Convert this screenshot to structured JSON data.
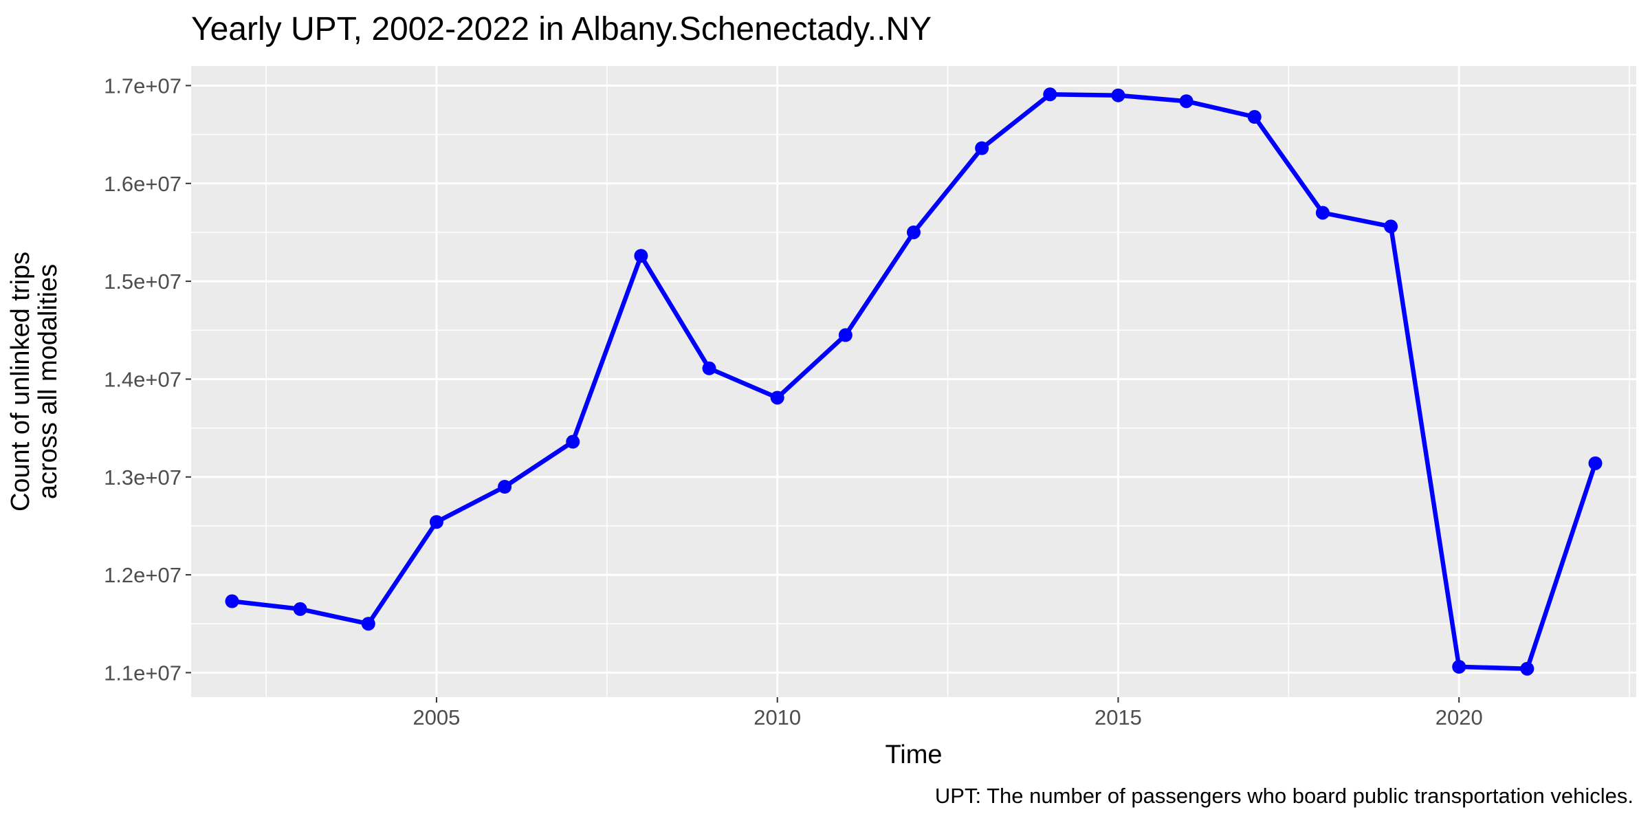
{
  "chart_data": {
    "type": "line",
    "title": "Yearly UPT, 2002-2022 in Albany.Schenectady..NY",
    "xlabel": "Time",
    "ylabel_lines": [
      "Count of unlinked trips",
      "across all modalities"
    ],
    "caption": "UPT: The number of passengers who board public transportation vehicles.",
    "xlim": [
      2001.4,
      2022.6
    ],
    "ylim": [
      10750000,
      17200000
    ],
    "x_ticks": [
      2005,
      2010,
      2015,
      2020
    ],
    "x_tick_labels": [
      "2005",
      "2010",
      "2015",
      "2020"
    ],
    "x_minor_ticks": [
      2002.5,
      2007.5,
      2012.5,
      2017.5,
      2022.5
    ],
    "y_ticks": [
      11000000,
      12000000,
      13000000,
      14000000,
      15000000,
      16000000,
      17000000
    ],
    "y_tick_labels": [
      "1.1e+07",
      "1.2e+07",
      "1.3e+07",
      "1.4e+07",
      "1.5e+07",
      "1.6e+07",
      "1.7e+07"
    ],
    "y_minor_ticks": [
      11500000,
      12500000,
      13500000,
      14500000,
      15500000,
      16500000
    ],
    "grid": true,
    "legend": "none",
    "colors": {
      "line": "#0000ff",
      "panel": "#ebebeb",
      "grid": "#ffffff"
    },
    "series": [
      {
        "x": [
          2002,
          2003,
          2004,
          2005,
          2006,
          2007,
          2008,
          2009,
          2010,
          2011,
          2012,
          2013,
          2014,
          2015,
          2016,
          2017,
          2018,
          2019,
          2020,
          2021,
          2022
        ],
        "values": [
          11730000,
          11650000,
          11500000,
          12540000,
          12900000,
          13360000,
          15260000,
          14110000,
          13810000,
          14450000,
          15500000,
          16360000,
          16910000,
          16900000,
          16840000,
          16680000,
          15700000,
          15560000,
          11060000,
          11040000,
          13140000
        ]
      }
    ]
  }
}
